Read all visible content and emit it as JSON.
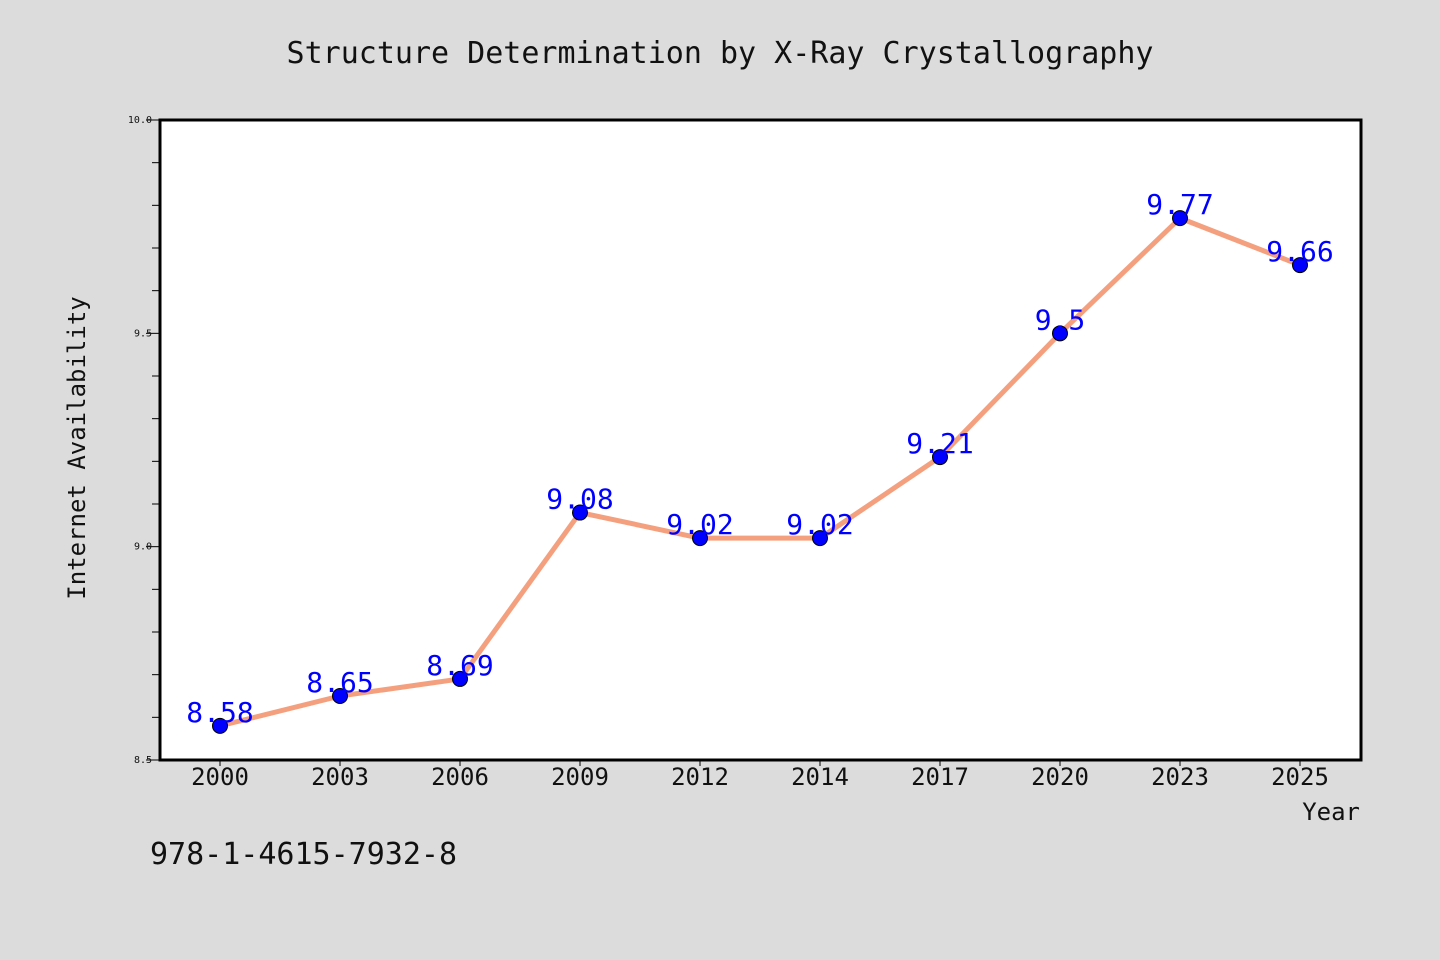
{
  "chart_data": {
    "type": "line",
    "title": "Structure Determination by X-Ray Crystallography",
    "xlabel": "Year",
    "ylabel": "Internet Availability",
    "categories": [
      "2000",
      "2003",
      "2006",
      "2009",
      "2012",
      "2014",
      "2017",
      "2020",
      "2023",
      "2025"
    ],
    "series": [
      {
        "values": [
          8.58,
          8.65,
          8.69,
          9.08,
          9.02,
          9.02,
          9.21,
          9.5,
          9.77,
          9.66
        ]
      }
    ],
    "data_labels": [
      "8.58",
      "8.65",
      "8.69",
      "9.08",
      "9.02",
      "9.02",
      "9.21",
      "9.5",
      "9.77",
      "9.66"
    ],
    "ylim": [
      8.5,
      10.0
    ],
    "yticks": [
      "8.5",
      "9.0",
      "9.5",
      "10.0"
    ],
    "grid": false,
    "colors": {
      "line": "#f4a07e",
      "marker": "#0000ff",
      "data_label": "#0000ff",
      "plot_background": "#ffffff",
      "figure_background": "#dcdcdc"
    }
  },
  "footer_text": "978-1-4615-7932-8"
}
